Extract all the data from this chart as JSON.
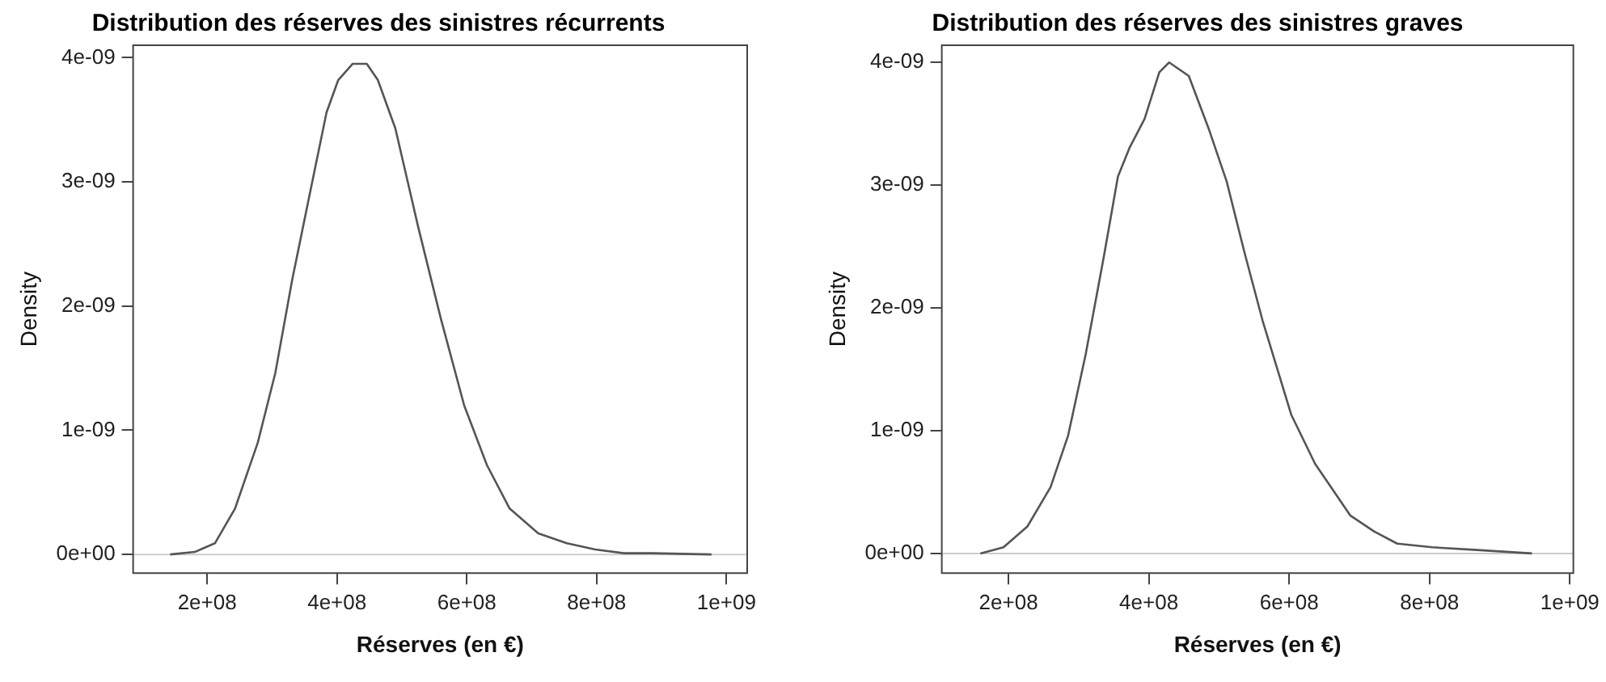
{
  "chart_data": [
    {
      "type": "line",
      "title": "Distribution des réserves des sinistres récurrents",
      "xlabel": "Réserves (en €)",
      "ylabel": "Density",
      "series": [
        {
          "color": "#555555",
          "x": [
            143000000,
            181000000,
            212000000,
            243000000,
            278000000,
            305000000,
            331000000,
            358000000,
            384000000,
            402000000,
            424000000,
            446000000,
            463000000,
            490000000,
            525000000,
            560000000,
            596000000,
            631000000,
            666000000,
            710000000,
            754000000,
            798000000,
            842000000,
            886000000,
            977000000
          ],
          "values": [
            0,
            2e-11,
            9e-11,
            3.7e-10,
            9e-10,
            1.46e-09,
            2.21e-09,
            2.9e-09,
            3.56e-09,
            3.82e-09,
            3.95e-09,
            3.95e-09,
            3.82e-09,
            3.43e-09,
            2.64e-09,
            1.9e-09,
            1.2e-09,
            7.2e-10,
            3.7e-10,
            1.7e-10,
            9e-11,
            4e-11,
            1e-11,
            1e-11,
            0
          ]
        }
      ],
      "xlim": [
        86000000,
        1032000000
      ],
      "ylim": [
        -1.5e-10,
        4.1e-09
      ],
      "xticks": [
        {
          "value": 200000000,
          "label": "2e+08"
        },
        {
          "value": 400000000,
          "label": "4e+08"
        },
        {
          "value": 600000000,
          "label": "6e+08"
        },
        {
          "value": 800000000,
          "label": "8e+08"
        },
        {
          "value": 1000000000,
          "label": "1e+09"
        }
      ],
      "yticks": [
        {
          "value": 0,
          "label": "0e+00"
        },
        {
          "value": 1e-09,
          "label": "1e-09"
        },
        {
          "value": 2e-09,
          "label": "2e-09"
        },
        {
          "value": 3e-09,
          "label": "3e-09"
        },
        {
          "value": 4e-09,
          "label": "4e-09"
        }
      ],
      "ref_lines": [
        {
          "axis": "y",
          "value": 0,
          "color": "#cccccc"
        }
      ],
      "grid": false,
      "legend": false,
      "marker": "none",
      "line_style": "solid"
    },
    {
      "type": "line",
      "title": "Distribution des réserves des sinistres graves",
      "xlabel": "Réserves (en €)",
      "ylabel": "Density",
      "series": [
        {
          "color": "#555555",
          "x": [
            160000000,
            193000000,
            227000000,
            260000000,
            285000000,
            310000000,
            336000000,
            356000000,
            373000000,
            394000000,
            415000000,
            429000000,
            457000000,
            486000000,
            511000000,
            536000000,
            562000000,
            603000000,
            637000000,
            687000000,
            721000000,
            754000000,
            804000000,
            863000000,
            946000000
          ],
          "values": [
            0,
            5e-11,
            2.2e-10,
            5.4e-10,
            9.6e-10,
            1.62e-09,
            2.42e-09,
            3.07e-09,
            3.31e-09,
            3.54e-09,
            3.92e-09,
            4e-09,
            3.89e-09,
            3.45e-09,
            3.03e-09,
            2.46e-09,
            1.9e-09,
            1.13e-09,
            7.3e-10,
            3.1e-10,
            1.8e-10,
            8e-11,
            5e-11,
            3e-11,
            0
          ]
        }
      ],
      "xlim": [
        105000000,
        1005000000
      ],
      "ylim": [
        -1.6e-10,
        4.14e-09
      ],
      "xticks": [
        {
          "value": 200000000,
          "label": "2e+08"
        },
        {
          "value": 400000000,
          "label": "4e+08"
        },
        {
          "value": 600000000,
          "label": "6e+08"
        },
        {
          "value": 800000000,
          "label": "8e+08"
        },
        {
          "value": 1000000000,
          "label": "1e+09"
        }
      ],
      "yticks": [
        {
          "value": 0,
          "label": "0e+00"
        },
        {
          "value": 1e-09,
          "label": "1e-09"
        },
        {
          "value": 2e-09,
          "label": "2e-09"
        },
        {
          "value": 3e-09,
          "label": "3e-09"
        },
        {
          "value": 4e-09,
          "label": "4e-09"
        }
      ],
      "ref_lines": [
        {
          "axis": "y",
          "value": 0,
          "color": "#cccccc"
        }
      ],
      "grid": false,
      "legend": false,
      "marker": "none",
      "line_style": "solid"
    }
  ]
}
